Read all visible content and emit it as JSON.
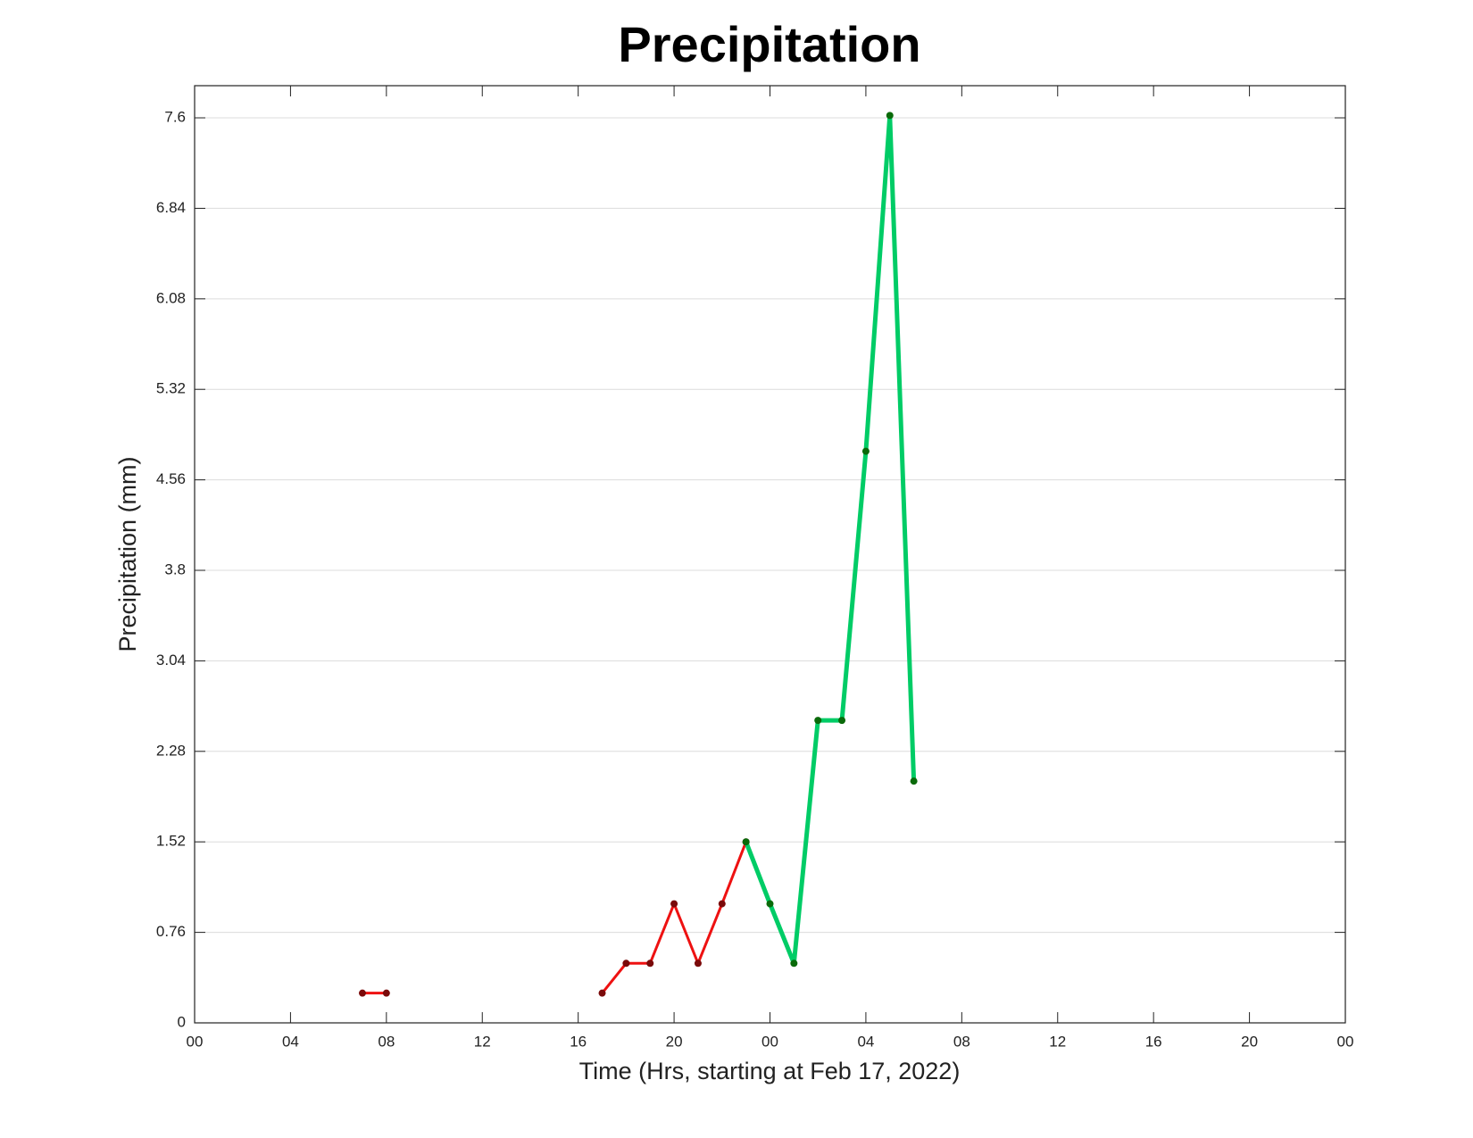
{
  "chart_data": {
    "type": "line",
    "title": "Precipitation",
    "x_label": "Time (Hrs, starting at Feb 17, 2022)",
    "y_label": "Precipitation (mm)",
    "x": [
      7,
      8,
      9,
      10,
      11,
      12,
      13,
      14,
      15,
      16,
      17,
      18,
      19,
      20,
      21,
      22,
      23,
      24,
      25,
      26,
      27,
      28,
      29,
      30
    ],
    "series": [
      {
        "color": "#ee1111",
        "marker_color": "#7a0a0a",
        "width": 3,
        "values": [
          0.25,
          0.25,
          null,
          null,
          null,
          null,
          null,
          null,
          null,
          null,
          0.25,
          0.5,
          0.5,
          1.0,
          0.5,
          1.0,
          1.52,
          null,
          null,
          null,
          null,
          null,
          null,
          null
        ]
      },
      {
        "color": "#00cc66",
        "marker_color": "#0a6a0a",
        "width": 5,
        "values": [
          null,
          null,
          null,
          null,
          null,
          null,
          null,
          null,
          null,
          null,
          null,
          null,
          null,
          null,
          null,
          null,
          1.52,
          1.0,
          0.5,
          2.54,
          2.54,
          4.8,
          7.62,
          2.03
        ]
      }
    ],
    "xlim": [
      0,
      48
    ],
    "xticks": [
      {
        "value": 0,
        "label": "00"
      },
      {
        "value": 4,
        "label": "04"
      },
      {
        "value": 8,
        "label": "08"
      },
      12,
      16,
      20,
      {
        "value": 24,
        "label": "00"
      },
      {
        "value": 28,
        "label": "04"
      },
      {
        "value": 32,
        "label": "08"
      },
      {
        "value": 36,
        "label": "12"
      },
      {
        "value": 40,
        "label": "16"
      },
      {
        "value": 44,
        "label": "20"
      },
      {
        "value": 48,
        "label": "00"
      }
    ],
    "ylim": [
      0,
      7.87
    ],
    "yticks": [
      0,
      0.76,
      1.52,
      2.28,
      3.04,
      3.8,
      4.56,
      5.32,
      6.08,
      6.84,
      7.6
    ],
    "grid": true
  }
}
